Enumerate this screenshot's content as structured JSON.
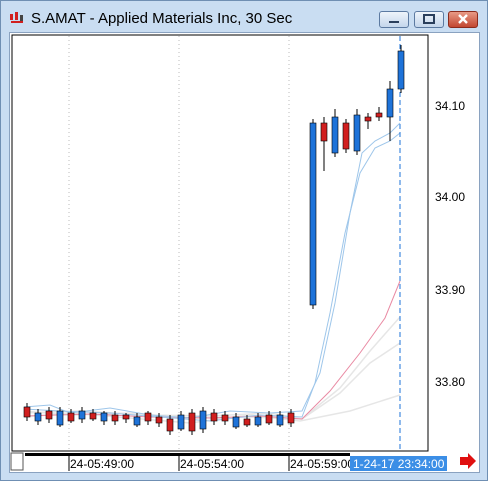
{
  "window": {
    "title": "S.AMAT - Applied Materials Inc, 30 Sec"
  },
  "price_axis": {
    "labels": [
      "34.10",
      "34.00",
      "33.90",
      "33.80"
    ]
  },
  "time_axis": {
    "labels": [
      "24-05:49:00",
      "24-05:54:00",
      "24-05:59:00"
    ],
    "cursor_label": "1-24-17 23:34:00"
  },
  "colors": {
    "up_candle": "#1e73d9",
    "down_candle": "#d11f1f",
    "cursor": "#1e73d9",
    "cursor_label_bg": "#3b8ee6",
    "ma_fast": "#9ec6ea",
    "ma_mid": "#e98aa3",
    "ma_slow": "#e6e6e6",
    "arrow": "#e01010"
  },
  "icons": {
    "app": "chart-app-icon",
    "minimize": "minimize-icon",
    "maximize": "maximize-icon",
    "close": "close-icon",
    "scroll_right": "right-arrow-icon",
    "corner": "corner-box-icon"
  }
}
